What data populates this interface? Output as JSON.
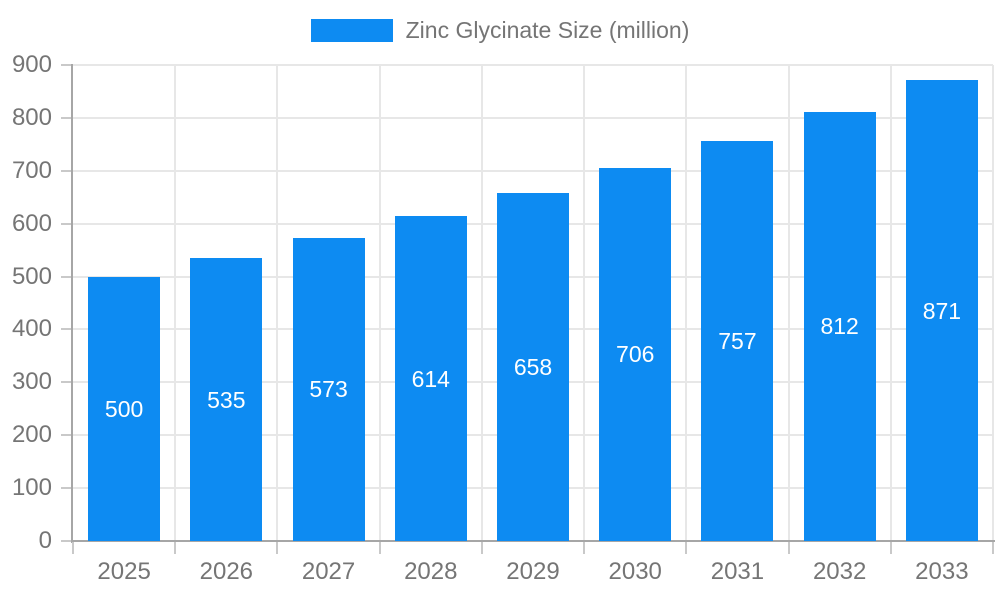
{
  "legend": {
    "label": "Zinc Glycinate Size (million)"
  },
  "colors": {
    "bar": "#0d8bf2",
    "bar_label": "#ffffff",
    "axis_text": "#757575",
    "legend_text": "#757575",
    "grid_line": "#e7e7e7",
    "axis_line": "#a6a6a6",
    "tick": "#c9c9c9",
    "background": "#ffffff"
  },
  "chart_data": {
    "type": "bar",
    "title": "",
    "xlabel": "",
    "ylabel": "",
    "categories": [
      "2025",
      "2026",
      "2027",
      "2028",
      "2029",
      "2030",
      "2031",
      "2032",
      "2033"
    ],
    "values": [
      500,
      535,
      573,
      614,
      658,
      706,
      757,
      812,
      871
    ],
    "series_name": "Zinc Glycinate Size (million)",
    "ylim": [
      0,
      900
    ],
    "ytick_step": 100,
    "ytick_labels": [
      "0",
      "100",
      "200",
      "300",
      "400",
      "500",
      "600",
      "700",
      "800",
      "900"
    ],
    "grid": true,
    "legend_position": "top-center",
    "value_labels": "inside-middle",
    "bar_color": "#0d8bf2"
  }
}
